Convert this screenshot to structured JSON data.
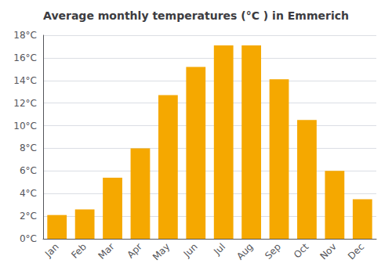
{
  "chart_data": {
    "type": "bar",
    "title": "Average monthly temperatures (°C ) in Emmerich",
    "categories": [
      "Jan",
      "Feb",
      "Mar",
      "Apr",
      "May",
      "Jun",
      "Jul",
      "Aug",
      "Sep",
      "Oct",
      "Nov",
      "Dec"
    ],
    "values": [
      2.1,
      2.6,
      5.4,
      8.0,
      12.7,
      15.2,
      17.1,
      17.1,
      14.1,
      10.5,
      6.0,
      3.5
    ],
    "color": "#F5A800",
    "ylim": [
      0,
      18
    ],
    "yticks": [
      {
        "value": 0,
        "label": "0°C"
      },
      {
        "value": 2,
        "label": "2°C"
      },
      {
        "value": 4,
        "label": "4°C"
      },
      {
        "value": 6,
        "label": "6°C"
      },
      {
        "value": 8,
        "label": "8°C"
      },
      {
        "value": 10,
        "label": "10°C"
      },
      {
        "value": 12,
        "label": "12°C"
      },
      {
        "value": 14,
        "label": "14°C"
      },
      {
        "value": 16,
        "label": "16°C"
      },
      {
        "value": 18,
        "label": "18°C"
      }
    ],
    "grid": true
  }
}
